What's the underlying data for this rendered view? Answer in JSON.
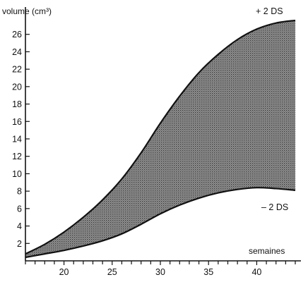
{
  "chart_data": {
    "type": "area",
    "title": "",
    "ylabel": "volume (cm³)",
    "xlabel": "semaines",
    "xlim": [
      16,
      44
    ],
    "ylim": [
      0,
      28
    ],
    "x_ticks": [
      20,
      25,
      30,
      35,
      40
    ],
    "y_ticks": [
      2,
      4,
      6,
      8,
      10,
      12,
      14,
      16,
      18,
      20,
      22,
      24,
      26
    ],
    "band": {
      "upper_label": "+ 2 DS",
      "lower_label": "– 2 DS",
      "fill_color": "#8a8a8a",
      "x": [
        16,
        18,
        20,
        22,
        24,
        26,
        28,
        30,
        32,
        34,
        36,
        38,
        40,
        42,
        44
      ],
      "upper": [
        0.8,
        1.9,
        3.3,
        5.0,
        7.0,
        9.4,
        12.4,
        15.8,
        18.9,
        21.6,
        23.7,
        25.4,
        26.6,
        27.3,
        27.6
      ],
      "lower": [
        0.4,
        0.8,
        1.2,
        1.7,
        2.3,
        3.1,
        4.2,
        5.4,
        6.4,
        7.2,
        7.8,
        8.2,
        8.4,
        8.3,
        8.1
      ]
    }
  }
}
